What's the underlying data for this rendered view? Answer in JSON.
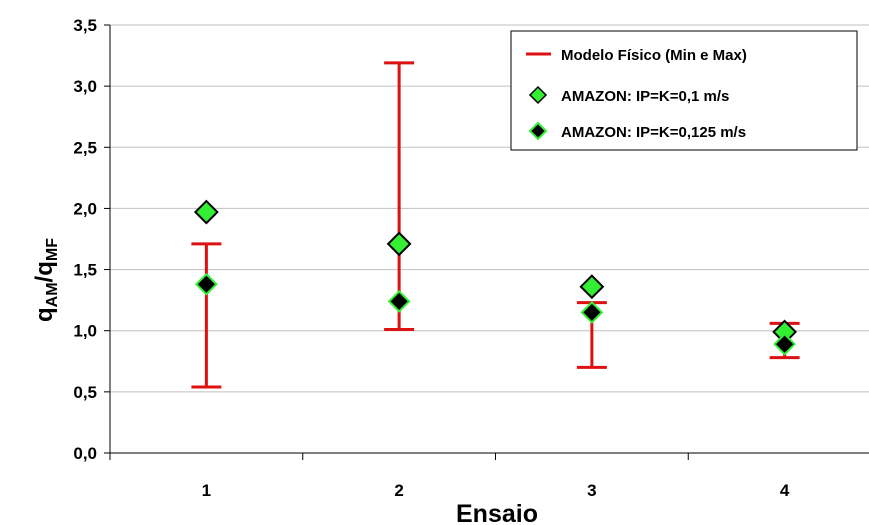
{
  "chart_data": {
    "type": "scatter",
    "xlabel": "Ensaio",
    "ylabel_main": "q",
    "ylabel_sub1": "AM",
    "ylabel_sep": "/q",
    "ylabel_sub2": "MF",
    "categories": [
      "1",
      "2",
      "3",
      "4"
    ],
    "ylim": [
      0,
      3.5
    ],
    "yticks": [
      "0,0",
      "0,5",
      "1,0",
      "1,5",
      "2,0",
      "2,5",
      "3,0",
      "3,5"
    ],
    "grid": true,
    "legend_position": "top-right",
    "error_bars": {
      "name": "Modelo Físico (Min e Max)",
      "color": "#dd1111",
      "min": [
        0.54,
        1.01,
        0.7,
        0.78
      ],
      "max": [
        1.71,
        3.19,
        1.23,
        1.06
      ]
    },
    "series": [
      {
        "name": "AMAZON: IP=K=0,1 m/s",
        "marker": "diamond",
        "color": "#33ee33",
        "values": [
          1.97,
          1.71,
          1.36,
          0.99
        ]
      },
      {
        "name": "AMAZON: IP=K=0,125 m/s",
        "marker": "diamond",
        "fill": "#000000",
        "color": "#33ee33",
        "values": [
          1.38,
          1.24,
          1.15,
          0.89
        ]
      }
    ]
  }
}
